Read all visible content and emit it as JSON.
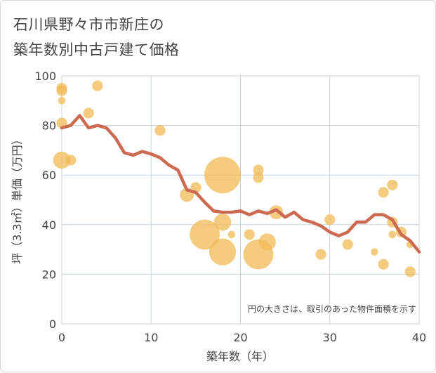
{
  "title_line1": "石川県野々市市新庄の",
  "title_line2": "築年数別中古戸建て価格",
  "chart_data": {
    "type": "scatter",
    "title": "石川県野々市市新庄の築年数別中古戸建て価格",
    "xlabel": "築年数（年）",
    "ylabel": "坪（3.3㎡）単価（万円）",
    "xlim": [
      0,
      40
    ],
    "ylim": [
      0,
      100
    ],
    "x_ticks": [
      0,
      10,
      20,
      30,
      40
    ],
    "y_ticks": [
      0,
      20,
      40,
      60,
      80,
      100
    ],
    "grid": true,
    "note": "円の大きさは、取引のあった物件面積を示す",
    "colors": {
      "bubble": "#f2b955",
      "line": "#cd6a52",
      "grid": "#c9d3de",
      "text": "#444444"
    },
    "bubbles": [
      {
        "x": 0,
        "y": 95,
        "size": 2
      },
      {
        "x": 0,
        "y": 94,
        "size": 2
      },
      {
        "x": 0,
        "y": 90,
        "size": 1
      },
      {
        "x": 0,
        "y": 81,
        "size": 2
      },
      {
        "x": 0,
        "y": 66,
        "size": 4
      },
      {
        "x": 1,
        "y": 66,
        "size": 2
      },
      {
        "x": 3,
        "y": 85,
        "size": 2
      },
      {
        "x": 4,
        "y": 96,
        "size": 2
      },
      {
        "x": 11,
        "y": 78,
        "size": 2
      },
      {
        "x": 14,
        "y": 52,
        "size": 3
      },
      {
        "x": 15,
        "y": 55,
        "size": 2
      },
      {
        "x": 16,
        "y": 36,
        "size": 8
      },
      {
        "x": 18,
        "y": 60,
        "size": 10
      },
      {
        "x": 18,
        "y": 41,
        "size": 4
      },
      {
        "x": 18,
        "y": 29,
        "size": 7
      },
      {
        "x": 19,
        "y": 36,
        "size": 1
      },
      {
        "x": 21,
        "y": 36,
        "size": 2
      },
      {
        "x": 22,
        "y": 62,
        "size": 2
      },
      {
        "x": 22,
        "y": 59,
        "size": 2
      },
      {
        "x": 22,
        "y": 28,
        "size": 8
      },
      {
        "x": 23,
        "y": 33,
        "size": 4
      },
      {
        "x": 24,
        "y": 45,
        "size": 3
      },
      {
        "x": 29,
        "y": 28,
        "size": 2
      },
      {
        "x": 30,
        "y": 42,
        "size": 2
      },
      {
        "x": 32,
        "y": 32,
        "size": 2
      },
      {
        "x": 35,
        "y": 29,
        "size": 1
      },
      {
        "x": 36,
        "y": 53,
        "size": 2
      },
      {
        "x": 36,
        "y": 24,
        "size": 2
      },
      {
        "x": 37,
        "y": 56,
        "size": 2
      },
      {
        "x": 37,
        "y": 41,
        "size": 2
      },
      {
        "x": 37,
        "y": 36,
        "size": 1
      },
      {
        "x": 38,
        "y": 37,
        "size": 2
      },
      {
        "x": 39,
        "y": 32,
        "size": 1
      },
      {
        "x": 39,
        "y": 21,
        "size": 2
      }
    ],
    "trend": {
      "x": [
        0,
        1,
        2,
        3,
        4,
        5,
        6,
        7,
        8,
        9,
        10,
        11,
        12,
        13,
        14,
        15,
        16,
        17,
        18,
        19,
        20,
        21,
        22,
        23,
        24,
        25,
        26,
        27,
        28,
        29,
        30,
        31,
        32,
        33,
        34,
        35,
        36,
        37,
        38,
        39,
        40
      ],
      "y": [
        79,
        80,
        84,
        79,
        80,
        79,
        75,
        69,
        68,
        69.5,
        68.5,
        67,
        64,
        62,
        54,
        53,
        49,
        45.5,
        45,
        45,
        45.5,
        44,
        45.5,
        44.5,
        46,
        43,
        45,
        42,
        41,
        39.5,
        37,
        35.5,
        37,
        41,
        41,
        44,
        44,
        42,
        36,
        33.5,
        29
      ]
    }
  }
}
